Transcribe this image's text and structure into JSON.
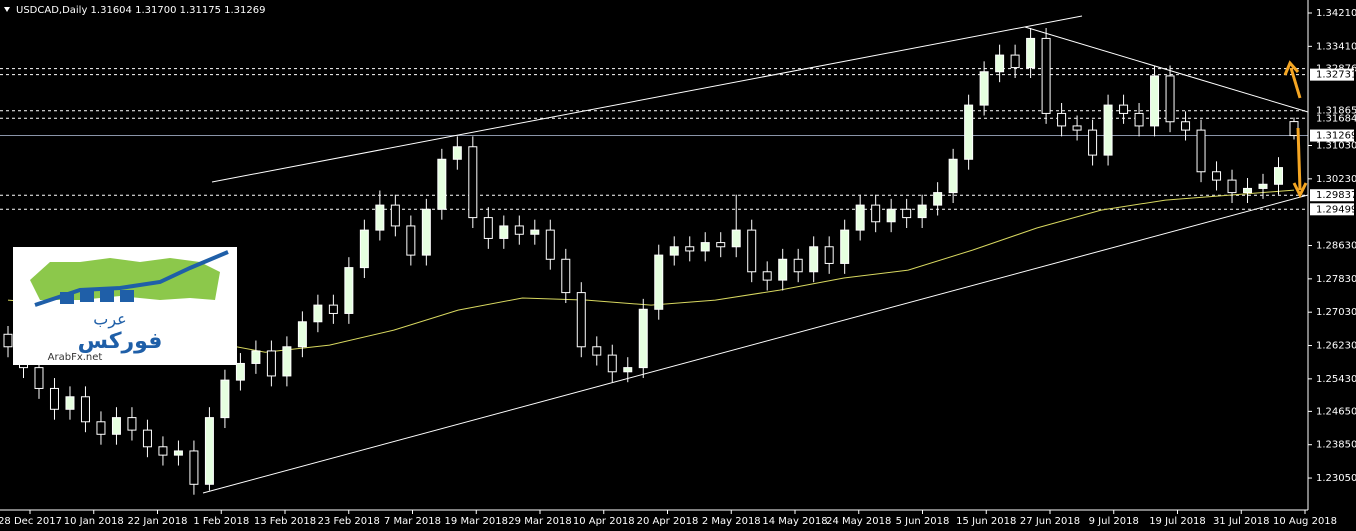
{
  "chart_data": {
    "type": "candlestick",
    "title": "USDCAD,Daily  1.31604 1.31700 1.31175 1.31269",
    "categories": [
      "28 Dec 2017",
      "10 Jan 2018",
      "22 Jan 2018",
      "1 Feb 2018",
      "13 Feb 2018",
      "23 Feb 2018",
      "7 Mar 2018",
      "19 Mar 2018",
      "29 Mar 2018",
      "10 Apr 2018",
      "20 Apr 2018",
      "2 May 2018",
      "14 May 2018",
      "24 May 2018",
      "5 Jun 2018",
      "15 Jun 2018",
      "27 Jun 2018",
      "9 Jul 2018",
      "19 Jul 2018",
      "31 Jul 2018",
      "10 Aug 2018"
    ],
    "ylim": [
      1.22283,
      1.34522
    ],
    "yticks": [
      {
        "value": 1.3421,
        "label": "1.34210"
      },
      {
        "value": 1.3341,
        "label": "1.33410"
      },
      {
        "value": 1.3103,
        "label": "1.31030"
      },
      {
        "value": 1.3023,
        "label": "1.30230"
      },
      {
        "value": 1.2863,
        "label": "1.28630"
      },
      {
        "value": 1.2783,
        "label": "1.27830"
      },
      {
        "value": 1.2703,
        "label": "1.27030"
      },
      {
        "value": 1.2623,
        "label": "1.26230"
      },
      {
        "value": 1.2543,
        "label": "1.25430"
      },
      {
        "value": 1.2465,
        "label": "1.24650"
      },
      {
        "value": 1.2385,
        "label": "1.23850"
      },
      {
        "value": 1.2305,
        "label": "1.23050"
      }
    ],
    "levels": [
      {
        "value": 1.32876,
        "style": "dashed",
        "boxed": false
      },
      {
        "value": 1.32731,
        "style": "dashed",
        "boxed": true
      },
      {
        "value": 1.31865,
        "style": "dashed",
        "boxed": false
      },
      {
        "value": 1.31684,
        "style": "dashed",
        "boxed": false
      },
      {
        "value": 1.31269,
        "style": "solid",
        "boxed": true
      },
      {
        "value": 1.29837,
        "style": "dashed",
        "boxed": true
      },
      {
        "value": 1.29499,
        "style": "dashed",
        "boxed": true
      }
    ],
    "up_color": "#e6ffe0",
    "down_color": "#000000",
    "wick_color": "#ffffff",
    "ma_color": "#d8d860",
    "ohlc": [
      [
        1.265,
        1.267,
        1.2595,
        1.262
      ],
      [
        1.262,
        1.2645,
        1.2545,
        1.257
      ],
      [
        1.257,
        1.2595,
        1.2495,
        1.252
      ],
      [
        1.252,
        1.2545,
        1.2445,
        1.247
      ],
      [
        1.247,
        1.2525,
        1.2445,
        1.25
      ],
      [
        1.25,
        1.2525,
        1.2415,
        1.244
      ],
      [
        1.244,
        1.2465,
        1.2385,
        1.241
      ],
      [
        1.241,
        1.2475,
        1.2385,
        1.245
      ],
      [
        1.245,
        1.2475,
        1.2395,
        1.242
      ],
      [
        1.242,
        1.2445,
        1.2355,
        1.238
      ],
      [
        1.238,
        1.2405,
        1.2335,
        1.236
      ],
      [
        1.236,
        1.2395,
        1.2335,
        1.237
      ],
      [
        1.237,
        1.2395,
        1.2265,
        1.229
      ],
      [
        1.229,
        1.2475,
        1.2275,
        1.245
      ],
      [
        1.245,
        1.2565,
        1.2425,
        1.254
      ],
      [
        1.254,
        1.2605,
        1.2515,
        1.258
      ],
      [
        1.258,
        1.2635,
        1.2555,
        1.261
      ],
      [
        1.261,
        1.2635,
        1.2525,
        1.255
      ],
      [
        1.255,
        1.2645,
        1.2525,
        1.262
      ],
      [
        1.262,
        1.2705,
        1.2595,
        1.268
      ],
      [
        1.268,
        1.2745,
        1.2655,
        1.272
      ],
      [
        1.272,
        1.2745,
        1.2675,
        1.27
      ],
      [
        1.27,
        1.2835,
        1.2675,
        1.281
      ],
      [
        1.281,
        1.2925,
        1.2785,
        1.29
      ],
      [
        1.29,
        1.2995,
        1.2875,
        1.296
      ],
      [
        1.296,
        1.2985,
        1.2885,
        1.291
      ],
      [
        1.291,
        1.2935,
        1.2815,
        1.284
      ],
      [
        1.284,
        1.2975,
        1.2815,
        1.295
      ],
      [
        1.295,
        1.3095,
        1.2925,
        1.307
      ],
      [
        1.307,
        1.3125,
        1.3045,
        1.31
      ],
      [
        1.31,
        1.3125,
        1.2905,
        1.293
      ],
      [
        1.293,
        1.2955,
        1.2855,
        1.288
      ],
      [
        1.288,
        1.2935,
        1.2855,
        1.291
      ],
      [
        1.291,
        1.2935,
        1.2865,
        1.289
      ],
      [
        1.289,
        1.2925,
        1.2865,
        1.29
      ],
      [
        1.29,
        1.2925,
        1.2805,
        1.283
      ],
      [
        1.283,
        1.2855,
        1.2725,
        1.275
      ],
      [
        1.275,
        1.2775,
        1.2595,
        1.262
      ],
      [
        1.262,
        1.2645,
        1.2575,
        1.26
      ],
      [
        1.26,
        1.2625,
        1.2535,
        1.256
      ],
      [
        1.256,
        1.2595,
        1.2535,
        1.257
      ],
      [
        1.257,
        1.2735,
        1.2545,
        1.271
      ],
      [
        1.271,
        1.2865,
        1.2685,
        1.284
      ],
      [
        1.284,
        1.2885,
        1.2815,
        1.286
      ],
      [
        1.286,
        1.2885,
        1.2825,
        1.285
      ],
      [
        1.285,
        1.2895,
        1.2825,
        1.287
      ],
      [
        1.287,
        1.2895,
        1.2835,
        1.286
      ],
      [
        1.286,
        1.2985,
        1.2835,
        1.29
      ],
      [
        1.29,
        1.2925,
        1.2775,
        1.28
      ],
      [
        1.28,
        1.2825,
        1.2755,
        1.278
      ],
      [
        1.278,
        1.2855,
        1.2755,
        1.283
      ],
      [
        1.283,
        1.2855,
        1.2775,
        1.28
      ],
      [
        1.28,
        1.2885,
        1.2775,
        1.286
      ],
      [
        1.286,
        1.2885,
        1.2795,
        1.282
      ],
      [
        1.282,
        1.2925,
        1.2795,
        1.29
      ],
      [
        1.29,
        1.2985,
        1.2875,
        1.296
      ],
      [
        1.296,
        1.2985,
        1.2895,
        1.292
      ],
      [
        1.292,
        1.2975,
        1.2895,
        1.295
      ],
      [
        1.295,
        1.2975,
        1.2905,
        1.293
      ],
      [
        1.293,
        1.2985,
        1.2905,
        1.296
      ],
      [
        1.296,
        1.3015,
        1.2935,
        1.299
      ],
      [
        1.299,
        1.3095,
        1.2965,
        1.307
      ],
      [
        1.307,
        1.3225,
        1.3045,
        1.32
      ],
      [
        1.32,
        1.3305,
        1.3175,
        1.328
      ],
      [
        1.328,
        1.3345,
        1.3255,
        1.332
      ],
      [
        1.332,
        1.3345,
        1.3265,
        1.329
      ],
      [
        1.329,
        1.3385,
        1.3265,
        1.336
      ],
      [
        1.336,
        1.3385,
        1.3155,
        1.318
      ],
      [
        1.318,
        1.3205,
        1.3125,
        1.315
      ],
      [
        1.315,
        1.3175,
        1.3115,
        1.314
      ],
      [
        1.314,
        1.3165,
        1.3055,
        1.308
      ],
      [
        1.308,
        1.3225,
        1.3055,
        1.32
      ],
      [
        1.32,
        1.3225,
        1.3155,
        1.318
      ],
      [
        1.318,
        1.3205,
        1.3125,
        1.315
      ],
      [
        1.315,
        1.3295,
        1.3125,
        1.327
      ],
      [
        1.327,
        1.3295,
        1.3135,
        1.316
      ],
      [
        1.316,
        1.3185,
        1.3115,
        1.314
      ],
      [
        1.314,
        1.3165,
        1.3015,
        1.304
      ],
      [
        1.304,
        1.3065,
        1.2995,
        1.302
      ],
      [
        1.302,
        1.3045,
        1.2965,
        1.299
      ],
      [
        1.299,
        1.3025,
        1.2965,
        1.3
      ],
      [
        1.3,
        1.3035,
        1.2975,
        1.301
      ],
      [
        1.301,
        1.3075,
        1.2985,
        1.305
      ],
      [
        1.31604,
        1.317,
        1.31175,
        1.31269
      ]
    ],
    "ma": [
      1.2732,
      1.272,
      1.2684,
      1.2636,
      1.2607,
      1.2624,
      1.266,
      1.2708,
      1.2737,
      1.2732,
      1.272,
      1.2732,
      1.2756,
      1.2785,
      1.2804,
      1.2852,
      1.2905,
      1.2948,
      1.2972,
      1.2984,
      1.2996
    ],
    "watermark": {
      "arabic_1": "عرب",
      "arabic_2": "فوركس",
      "site": "ArabFx.net"
    }
  }
}
